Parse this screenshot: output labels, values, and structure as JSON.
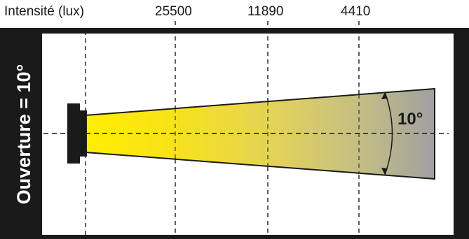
{
  "header": {
    "intensity_label": "Intensité (lux)",
    "lux_values": [
      "25500",
      "11890",
      "4410"
    ]
  },
  "sidebar": {
    "aperture_label": "Ouverture = 10°"
  },
  "beam": {
    "angle_label": "10°"
  },
  "colors": {
    "frame": "#1a1a1a",
    "beam_start": "#ffee00",
    "beam_end": "#a0a0a0"
  }
}
